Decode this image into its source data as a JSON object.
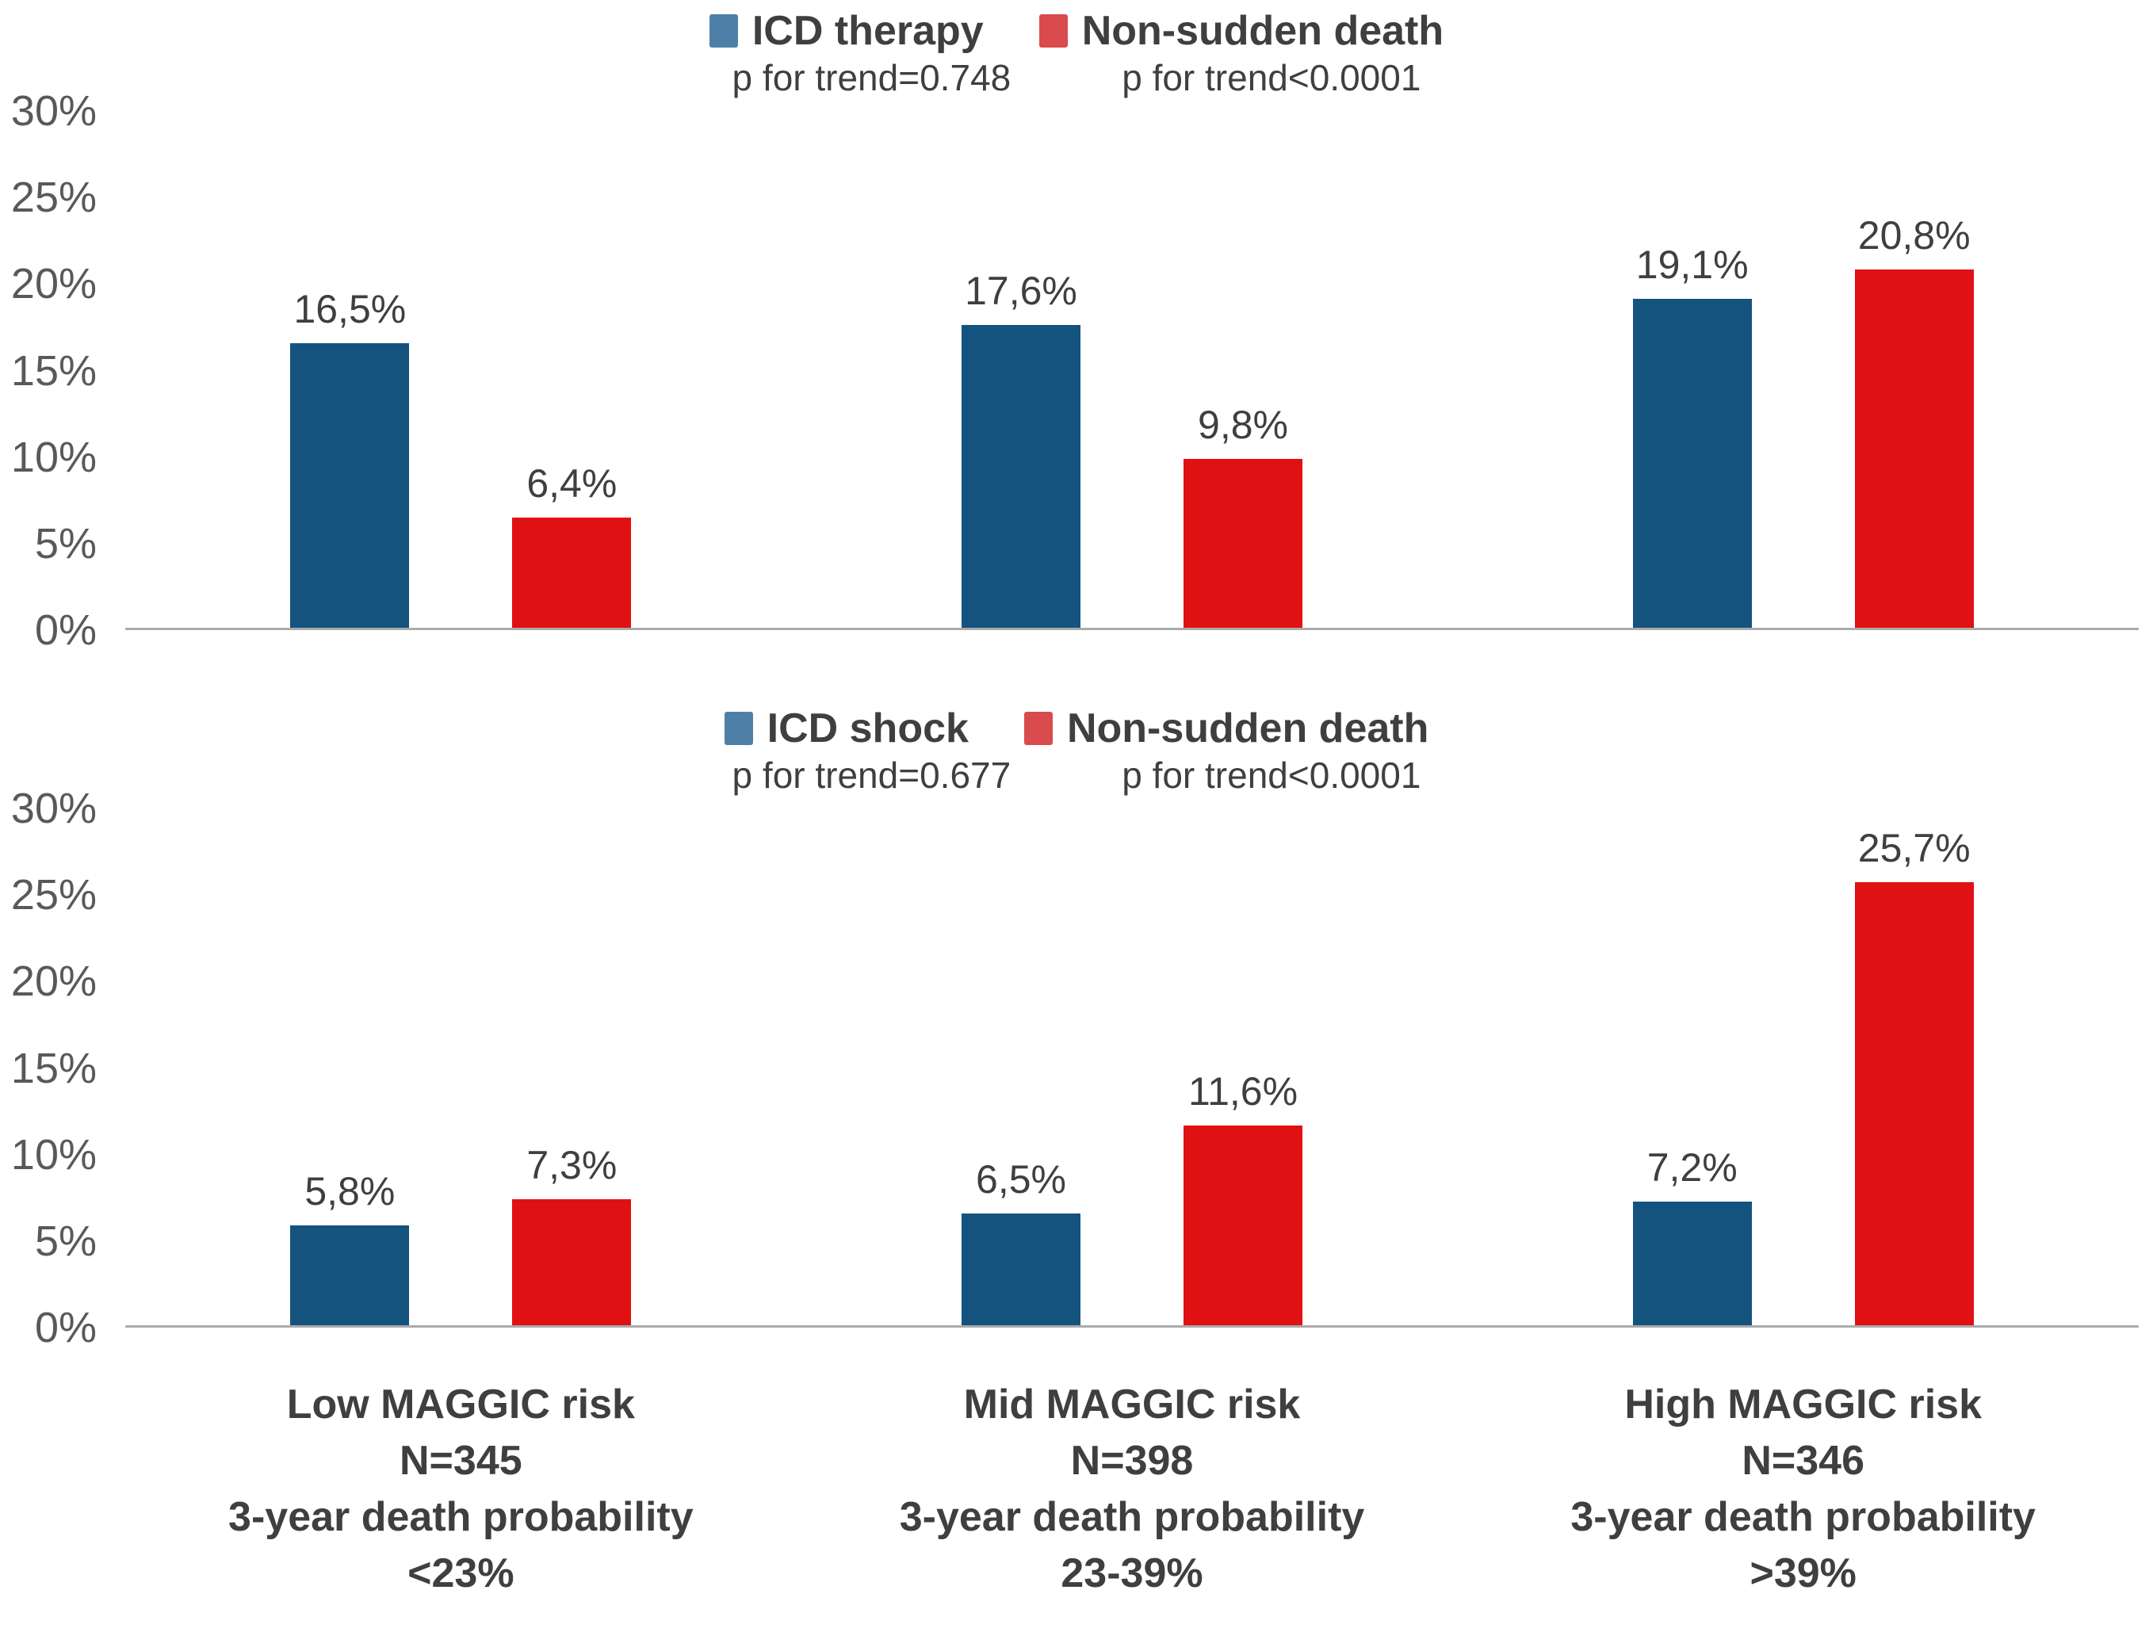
{
  "colors": {
    "bar_blue": "#15537F",
    "bar_red": "#E01113",
    "legend_blue": "#4E80A7",
    "legend_red": "#D94B4D",
    "text_dark": "#3F3F3F",
    "axis_text": "#595959",
    "axis_line": "#ABABAB"
  },
  "chart_data": [
    {
      "type": "bar",
      "legend_position": "top-center",
      "grid": false,
      "ylim": [
        0,
        30
      ],
      "y_ticks": [
        {
          "label": "30%",
          "v": 30
        },
        {
          "label": "25%",
          "v": 25
        },
        {
          "label": "20%",
          "v": 20
        },
        {
          "label": "15%",
          "v": 15
        },
        {
          "label": "10%",
          "v": 10
        },
        {
          "label": "5%",
          "v": 5
        },
        {
          "label": "0%",
          "v": 0
        }
      ],
      "categories": [
        "Low MAGGIC risk",
        "Mid MAGGIC risk",
        "High MAGGIC risk"
      ],
      "legend": [
        {
          "label": "ICD therapy",
          "color": "#15537F"
        },
        {
          "label": "Non-sudden death",
          "color": "#E01113"
        }
      ],
      "annotations": [
        {
          "text": "p for trend=0.748"
        },
        {
          "text": "p for trend<0.0001"
        }
      ],
      "series": [
        {
          "name": "ICD therapy",
          "key": "icd-therapy",
          "color_key": "blue",
          "values": [
            16.5,
            17.6,
            19.1
          ],
          "labels": [
            "16,5%",
            "17,6%",
            "19,1%"
          ]
        },
        {
          "name": "Non-sudden death",
          "key": "non-sudden-death",
          "color_key": "red",
          "values": [
            6.4,
            9.8,
            20.8
          ],
          "labels": [
            "6,4%",
            "9,8%",
            "20,8%"
          ]
        }
      ]
    },
    {
      "type": "bar",
      "legend_position": "top-center",
      "grid": false,
      "ylim": [
        0,
        30
      ],
      "y_ticks": [
        {
          "label": "30%",
          "v": 30
        },
        {
          "label": "25%",
          "v": 25
        },
        {
          "label": "20%",
          "v": 20
        },
        {
          "label": "15%",
          "v": 15
        },
        {
          "label": "10%",
          "v": 10
        },
        {
          "label": "5%",
          "v": 5
        },
        {
          "label": "0%",
          "v": 0
        }
      ],
      "categories": [
        "Low MAGGIC risk",
        "Mid MAGGIC risk",
        "High MAGGIC risk"
      ],
      "legend": [
        {
          "label": "ICD shock",
          "color": "#15537F"
        },
        {
          "label": "Non-sudden death",
          "color": "#E01113"
        }
      ],
      "annotations": [
        {
          "text": "p for trend=0.677"
        },
        {
          "text": "p for trend<0.0001"
        }
      ],
      "series": [
        {
          "name": "ICD shock",
          "key": "icd-shock",
          "color_key": "blue",
          "values": [
            5.8,
            6.5,
            7.2
          ],
          "labels": [
            "5,8%",
            "6,5%",
            "7,2%"
          ]
        },
        {
          "name": "Non-sudden death",
          "key": "non-sudden-death",
          "color_key": "red",
          "values": [
            7.3,
            11.6,
            25.7
          ],
          "labels": [
            "7,3%",
            "11,6%",
            "25,7%"
          ]
        }
      ]
    }
  ],
  "x_categories": [
    {
      "lines": [
        "Low MAGGIC risk",
        "N=345",
        "3-year death probability",
        "<23%"
      ]
    },
    {
      "lines": [
        "Mid MAGGIC risk",
        "N=398",
        "3-year death probability",
        "23-39%"
      ]
    },
    {
      "lines": [
        "High MAGGIC risk",
        "N=346",
        "3-year death probability",
        ">39%"
      ]
    }
  ]
}
